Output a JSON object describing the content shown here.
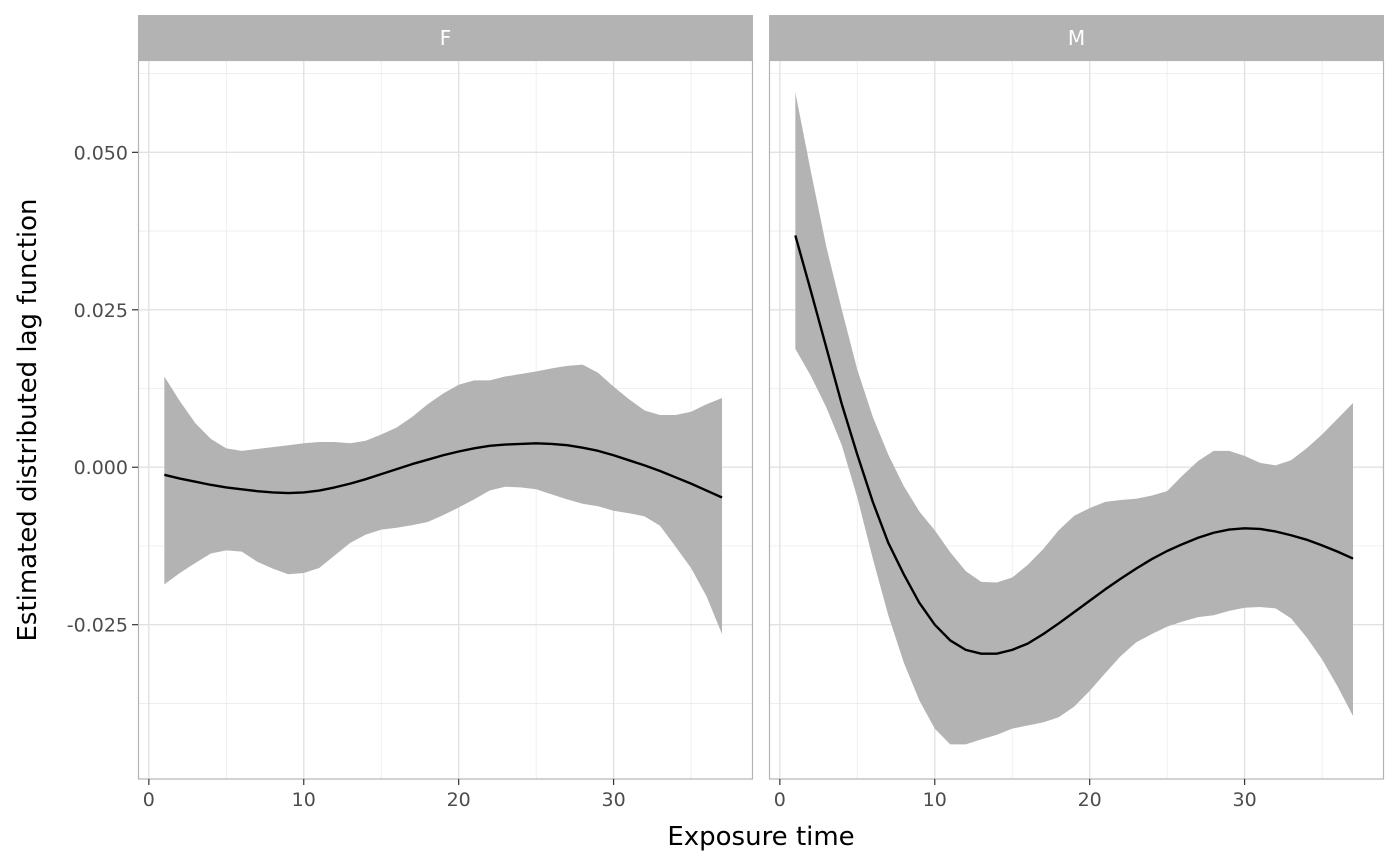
{
  "chart_data": {
    "type": "line",
    "xlabel": "Exposure time",
    "ylabel": "Estimated distributed lag function",
    "xlim": [
      -0.7,
      39
    ],
    "ylim": [
      -0.0495,
      0.0645
    ],
    "x_ticks": [
      0,
      10,
      20,
      30
    ],
    "x_tick_labels": [
      "0",
      "10",
      "20",
      "30"
    ],
    "y_ticks": [
      0.05,
      0.025,
      0.0,
      -0.025
    ],
    "y_tick_labels": [
      "0.050",
      "0.025",
      "0.000",
      "-0.025"
    ],
    "grid": true,
    "legend": "none",
    "colors": {
      "line": "#000000",
      "ribbon": "#b3b3b3",
      "strip": "#b3b3b3",
      "strip_text": "#ffffff",
      "grid": "#ebebeb",
      "border": "#b3b3b3"
    },
    "panels": [
      {
        "name": "F",
        "x": [
          1,
          2,
          3,
          4,
          5,
          6,
          7,
          8,
          9,
          10,
          11,
          12,
          13,
          14,
          15,
          16,
          17,
          18,
          19,
          20,
          21,
          22,
          23,
          24,
          25,
          26,
          27,
          28,
          29,
          30,
          31,
          32,
          33,
          34,
          35,
          36,
          37
        ],
        "estimate": [
          -0.0012,
          -0.0018,
          -0.0023,
          -0.0028,
          -0.0032,
          -0.0035,
          -0.0038,
          -0.004,
          -0.0041,
          -0.004,
          -0.0037,
          -0.0032,
          -0.0026,
          -0.0019,
          -0.0011,
          -0.0003,
          0.0005,
          0.0012,
          0.0019,
          0.0025,
          0.003,
          0.0034,
          0.0036,
          0.0037,
          0.0038,
          0.0037,
          0.0035,
          0.0031,
          0.0026,
          0.0019,
          0.0011,
          0.0003,
          -0.0006,
          -0.0016,
          -0.0026,
          -0.0037,
          -0.0048
        ],
        "upper": [
          0.0144,
          0.0105,
          0.007,
          0.0045,
          0.003,
          0.0026,
          0.0029,
          0.0032,
          0.0035,
          0.0038,
          0.004,
          0.004,
          0.0038,
          0.0042,
          0.0052,
          0.0063,
          0.008,
          0.01,
          0.0117,
          0.0131,
          0.0138,
          0.0138,
          0.0144,
          0.0148,
          0.0152,
          0.0157,
          0.0161,
          0.0163,
          0.015,
          0.0128,
          0.0108,
          0.009,
          0.0083,
          0.0083,
          0.0088,
          0.01,
          0.011
        ],
        "lower": [
          -0.0186,
          -0.0168,
          -0.0152,
          -0.0137,
          -0.0132,
          -0.0134,
          -0.015,
          -0.0161,
          -0.017,
          -0.0168,
          -0.016,
          -0.014,
          -0.012,
          -0.0107,
          -0.0099,
          -0.0096,
          -0.0092,
          -0.0087,
          -0.0076,
          -0.0064,
          -0.0051,
          -0.0037,
          -0.0031,
          -0.0032,
          -0.0035,
          -0.0043,
          -0.0051,
          -0.0058,
          -0.0062,
          -0.0069,
          -0.0073,
          -0.0078,
          -0.0093,
          -0.0126,
          -0.016,
          -0.0205,
          -0.0265
        ]
      },
      {
        "name": "M",
        "x": [
          1,
          2,
          3,
          4,
          5,
          6,
          7,
          8,
          9,
          10,
          11,
          12,
          13,
          14,
          15,
          16,
          17,
          18,
          19,
          20,
          21,
          22,
          23,
          24,
          25,
          26,
          27,
          28,
          29,
          30,
          31,
          32,
          33,
          34,
          35,
          36,
          37
        ],
        "estimate": [
          0.0368,
          0.028,
          0.019,
          0.01,
          0.002,
          -0.0055,
          -0.012,
          -0.017,
          -0.0215,
          -0.025,
          -0.0275,
          -0.029,
          -0.0296,
          -0.0296,
          -0.029,
          -0.028,
          -0.0265,
          -0.0248,
          -0.023,
          -0.0212,
          -0.0194,
          -0.0177,
          -0.0161,
          -0.0146,
          -0.0133,
          -0.0122,
          -0.0112,
          -0.0104,
          -0.0099,
          -0.0097,
          -0.0098,
          -0.0102,
          -0.0108,
          -0.0115,
          -0.0124,
          -0.0134,
          -0.0145
        ],
        "upper": [
          0.0595,
          0.047,
          0.035,
          0.025,
          0.0155,
          0.008,
          0.002,
          -0.003,
          -0.007,
          -0.01,
          -0.0135,
          -0.0165,
          -0.0182,
          -0.0183,
          -0.0175,
          -0.0155,
          -0.013,
          -0.01,
          -0.0077,
          -0.0065,
          -0.0055,
          -0.0052,
          -0.005,
          -0.0045,
          -0.0038,
          -0.0013,
          0.001,
          0.0026,
          0.0026,
          0.0018,
          0.0007,
          0.0003,
          0.0011,
          0.003,
          0.0052,
          0.0077,
          0.0102
        ],
        "lower": [
          0.0188,
          0.0145,
          0.0095,
          0.0035,
          -0.0048,
          -0.0145,
          -0.0235,
          -0.031,
          -0.037,
          -0.0415,
          -0.044,
          -0.044,
          -0.0432,
          -0.0425,
          -0.0415,
          -0.041,
          -0.0405,
          -0.0397,
          -0.038,
          -0.0355,
          -0.0327,
          -0.03,
          -0.0278,
          -0.0265,
          -0.0253,
          -0.0245,
          -0.0238,
          -0.0235,
          -0.0228,
          -0.0223,
          -0.0222,
          -0.0224,
          -0.024,
          -0.027,
          -0.0305,
          -0.0348,
          -0.0395
        ]
      }
    ]
  }
}
